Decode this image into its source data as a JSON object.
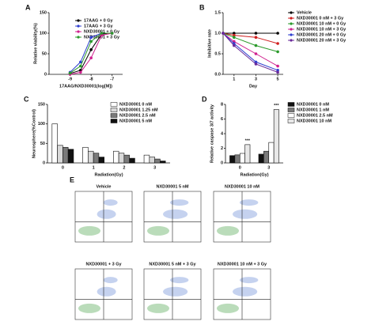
{
  "chart_data": [
    {
      "panel": "A",
      "type": "line",
      "xlabel": "17AAG/NXD30001(log[M])",
      "ylabel": "Relative viability(%)",
      "x": [
        -9,
        -8.5,
        -8,
        -7.5,
        -7
      ],
      "xlim": [
        -10,
        -6.5
      ],
      "xticks": [
        -9,
        -8,
        -7
      ],
      "ylim": [
        0,
        150
      ],
      "yticks": [
        0,
        50,
        100,
        150
      ],
      "series": [
        {
          "name": "17AAG + 0 Gy",
          "color": "#000000",
          "values": [
            2,
            10,
            60,
            98,
            100
          ]
        },
        {
          "name": "17AAG + 3 Gy",
          "color": "#2f3fd0",
          "values": [
            5,
            30,
            90,
            100,
            100
          ]
        },
        {
          "name": "NXD30001 + 0 Gy",
          "color": "#d0208f",
          "values": [
            0,
            5,
            40,
            95,
            100
          ]
        },
        {
          "name": "NXD30001 + 3 Gy",
          "color": "#2a9a2a",
          "values": [
            3,
            20,
            80,
            100,
            100
          ]
        }
      ]
    },
    {
      "panel": "B",
      "type": "line",
      "xlabel": "Day",
      "ylabel": "Inhibitive rate",
      "x": [
        0,
        1,
        3,
        5
      ],
      "xlim": [
        0,
        5.5
      ],
      "xticks": [
        1,
        3,
        5
      ],
      "ylim": [
        0,
        1.5
      ],
      "yticks": [
        {
          "value": 0,
          "label": "0.0"
        },
        {
          "value": 0.5,
          "label": "0.5"
        },
        {
          "value": 1,
          "label": "1.0"
        },
        {
          "value": 1.5,
          "label": "1.5"
        }
      ],
      "series": [
        {
          "name": "Vehicle",
          "color": "#000000",
          "values": [
            1,
            1,
            1,
            1
          ]
        },
        {
          "name": "NXD30001 0 nM + 3 Gy",
          "color": "#d02020",
          "values": [
            1,
            0.95,
            0.9,
            0.75
          ]
        },
        {
          "name": "NXD30001 10 nM + 0 Gy",
          "color": "#2a9a2a",
          "values": [
            1,
            0.9,
            0.7,
            0.55
          ]
        },
        {
          "name": "NXD30001 10 nM + 3 Gy",
          "color": "#d0208f",
          "values": [
            1,
            0.8,
            0.5,
            0.2
          ]
        },
        {
          "name": "NXD30001 20 nM + 0 Gy",
          "color": "#2f3fd0",
          "values": [
            1,
            0.75,
            0.3,
            0.1
          ]
        },
        {
          "name": "NXD30001 20 nM + 3 Gy",
          "color": "#6a2a9a",
          "values": [
            1,
            0.7,
            0.25,
            0.05
          ]
        }
      ]
    },
    {
      "panel": "C",
      "type": "bar",
      "xlabel": "Radiation(Gy)",
      "ylabel": "Neurosphere(%Control)",
      "categories": [
        "0",
        "1",
        "2",
        "3"
      ],
      "ylim": [
        0,
        150
      ],
      "yticks": [
        0,
        50,
        100,
        150
      ],
      "series": [
        {
          "name": "NXD30001 0 nM",
          "color": "#ffffff",
          "values": [
            100,
            40,
            30,
            20
          ]
        },
        {
          "name": "NXD30001 1.25 nM",
          "color": "#d8d8d8",
          "values": [
            45,
            30,
            25,
            15
          ]
        },
        {
          "name": "NXD30001 2.5 nM",
          "color": "#7a7a7a",
          "values": [
            40,
            25,
            20,
            10
          ]
        },
        {
          "name": "NXD30001 5 nM",
          "color": "#111111",
          "values": [
            35,
            15,
            12,
            5
          ]
        }
      ]
    },
    {
      "panel": "D",
      "type": "bar",
      "xlabel": "Radiation(Gy)",
      "ylabel": "Relative caspase 3/7 activity",
      "categories": [
        "0",
        "3"
      ],
      "ylim": [
        0,
        8
      ],
      "yticks": [
        0,
        2,
        4,
        6,
        8
      ],
      "series": [
        {
          "name": "NXD30001 0 nM",
          "color": "#111111",
          "values": [
            1,
            1.2
          ]
        },
        {
          "name": "NXD30001 1 nM",
          "color": "#7a7a7a",
          "values": [
            1.1,
            1.6
          ]
        },
        {
          "name": "NXD30001 2.5 nM",
          "color": "#ffffff",
          "values": [
            1.3,
            2.8
          ]
        },
        {
          "name": "NXD30001 10 nM",
          "color": "#e8e8e8",
          "values": [
            2.5,
            7.3
          ]
        }
      ],
      "annotations": [
        "***",
        "***"
      ]
    }
  ],
  "flow_panels": {
    "panel": "E",
    "titles": [
      "Vehicle",
      "NXD30001 5 nM",
      "NXD30001 10 nM",
      "NXD30001 + 3 Gy",
      "NXD30001 5 nM + 3 Gy",
      "NXD30001 10 nM + 3 Gy"
    ]
  }
}
